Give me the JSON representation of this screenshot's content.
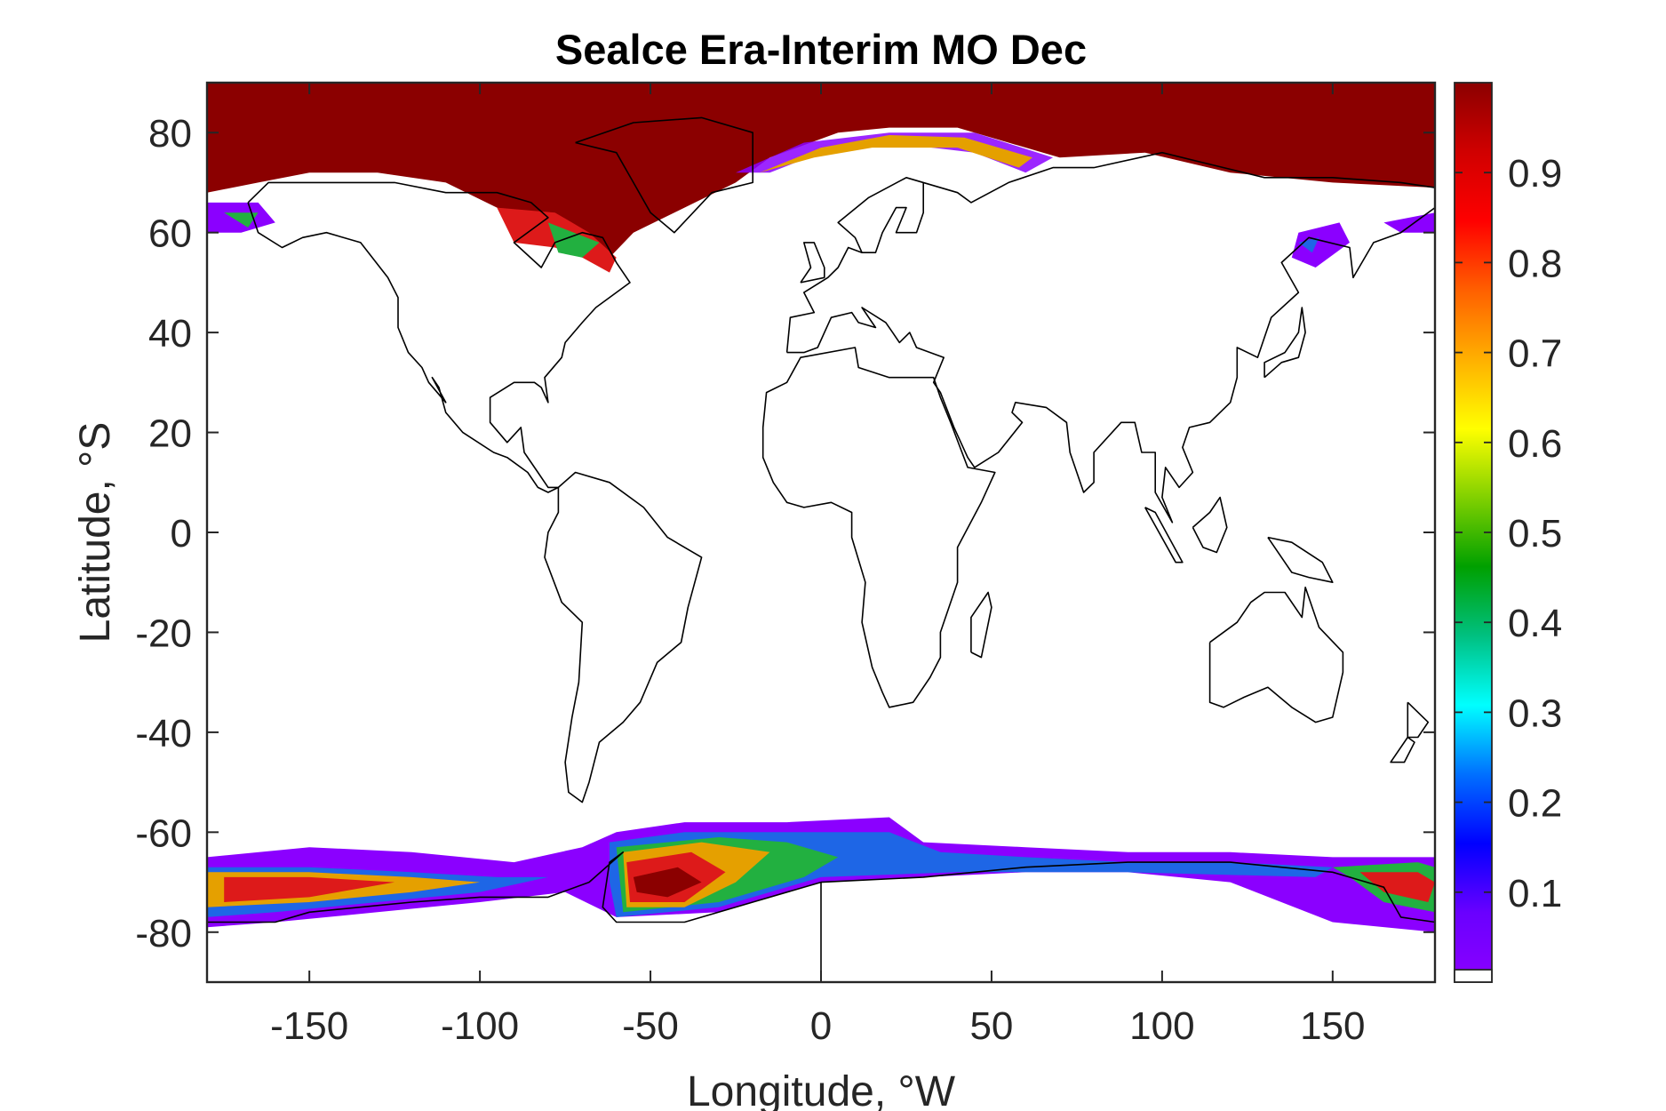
{
  "chart_data": {
    "type": "heatmap",
    "title": "Sealce Era-Interim MO Dec",
    "xlabel": "Longitude, °W",
    "ylabel": "Latitude, °S",
    "xlim": [
      -180,
      180
    ],
    "ylim": [
      -90,
      90
    ],
    "xticks": [
      -150,
      -100,
      -50,
      0,
      50,
      100,
      150
    ],
    "yticks": [
      -80,
      -60,
      -40,
      -20,
      0,
      20,
      40,
      60,
      80
    ],
    "colorbar": {
      "range": [
        0,
        1
      ],
      "ticks": [
        0.1,
        0.2,
        0.3,
        0.4,
        0.5,
        0.6,
        0.7,
        0.8,
        0.9
      ],
      "colormap": [
        "#8b00ff",
        "#6a00ff",
        "#0000ff",
        "#0070ff",
        "#00ffff",
        "#00c080",
        "#00a000",
        "#80d000",
        "#ffff00",
        "#ffb000",
        "#ff6000",
        "#ff0000",
        "#d00000",
        "#8b0000"
      ]
    },
    "grid": false,
    "ice_colors": {
      "full": "#8b0000",
      "high": "#dd1a1a",
      "mid": "#e5a000",
      "low": "#22b040",
      "edge": "#8b00ff",
      "blue": "#1e66e6"
    }
  }
}
